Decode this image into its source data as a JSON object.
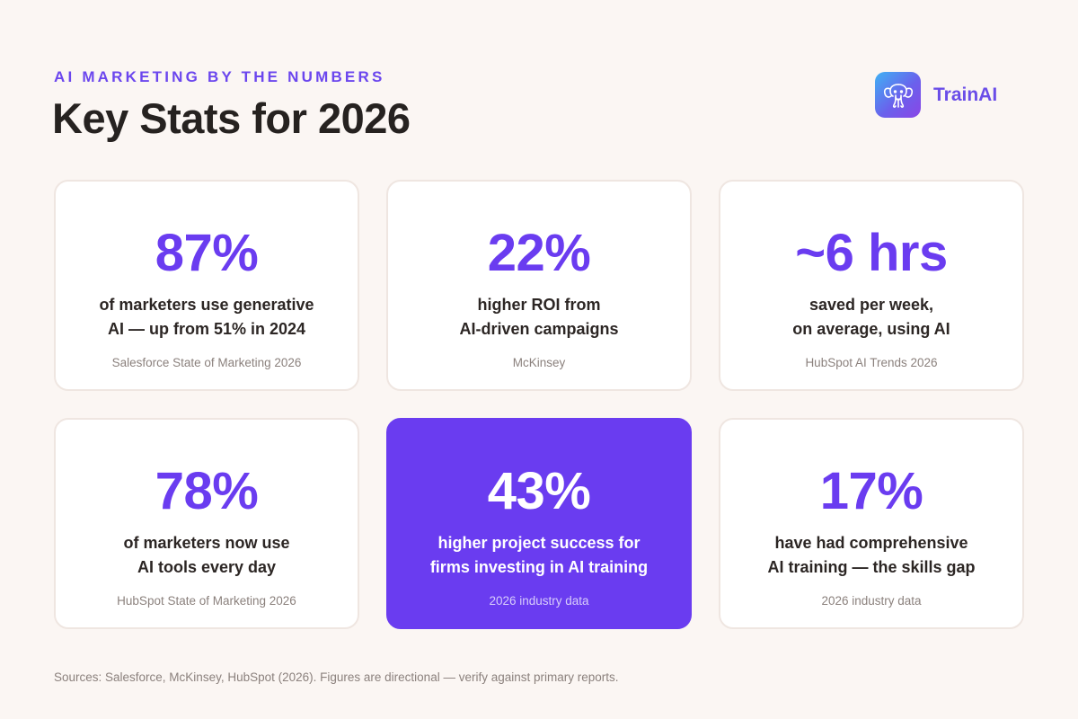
{
  "header": {
    "eyebrow": "AI MARKETING BY THE NUMBERS",
    "title": "Key Stats for 2026"
  },
  "brand": {
    "name": "TrainAI",
    "logo_icon": "elephant-icon"
  },
  "colors": {
    "accent": "#6a3cf0",
    "background": "#fbf6f3",
    "card": "#ffffff",
    "muted_text": "#8b817d"
  },
  "stats": [
    {
      "value": "87%",
      "lines": [
        "of marketers use generative",
        "AI — up from 51% in 2024"
      ],
      "source": "Salesforce State of Marketing 2026",
      "highlighted": false
    },
    {
      "value": "22%",
      "lines": [
        "higher ROI from",
        "AI-driven campaigns"
      ],
      "source": "McKinsey",
      "highlighted": false
    },
    {
      "value": "~6 hrs",
      "lines": [
        "saved per week,",
        "on average, using AI"
      ],
      "source": "HubSpot AI Trends 2026",
      "highlighted": false
    },
    {
      "value": "78%",
      "lines": [
        "of marketers now use",
        "AI tools every day"
      ],
      "source": "HubSpot State of Marketing 2026",
      "highlighted": false
    },
    {
      "value": "43%",
      "lines": [
        "higher project success for",
        "firms investing in AI training"
      ],
      "source": "2026 industry data",
      "highlighted": true
    },
    {
      "value": "17%",
      "lines": [
        "have had comprehensive",
        "AI training — the skills gap"
      ],
      "source": "2026 industry data",
      "highlighted": false
    }
  ],
  "footnote": "Sources: Salesforce, McKinsey, HubSpot (2026). Figures are directional — verify against primary reports."
}
